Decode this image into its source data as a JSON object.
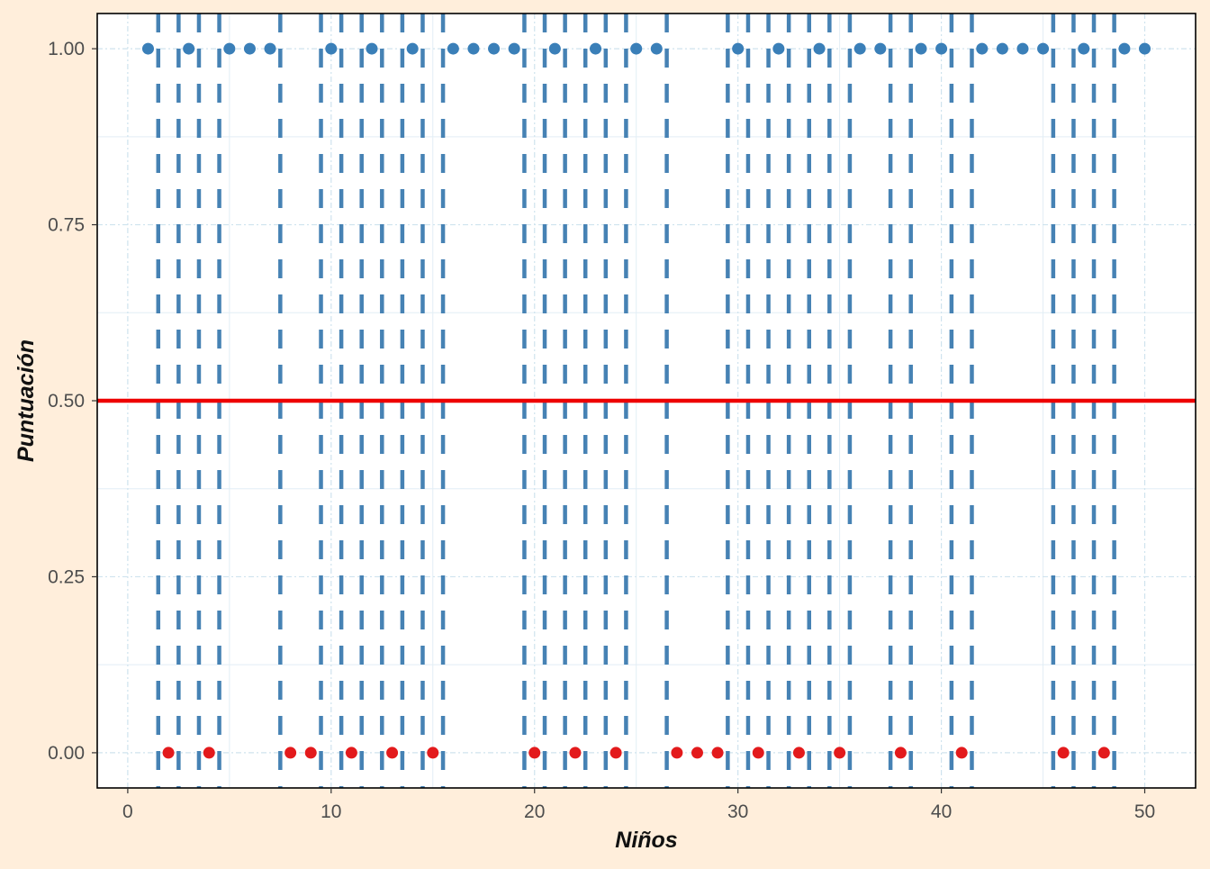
{
  "chart_data": {
    "type": "scatter",
    "title": "",
    "xlabel": "Niños",
    "ylabel": "Puntuación",
    "xlim": [
      -1.5,
      52.5
    ],
    "ylim": [
      -0.05,
      1.05
    ],
    "x_ticks": [
      {
        "value": 0,
        "label": "0"
      },
      {
        "value": 10,
        "label": "10"
      },
      {
        "value": 20,
        "label": "20"
      },
      {
        "value": 30,
        "label": "30"
      },
      {
        "value": 40,
        "label": "40"
      },
      {
        "value": 50,
        "label": "50"
      }
    ],
    "y_ticks": [
      {
        "value": 0.0,
        "label": "0.00"
      },
      {
        "value": 0.25,
        "label": "0.25"
      },
      {
        "value": 0.5,
        "label": "0.50"
      },
      {
        "value": 0.75,
        "label": "0.75"
      },
      {
        "value": 1.0,
        "label": "1.00"
      }
    ],
    "grid": true,
    "threshold": {
      "y": 0.5,
      "color": "#EE0000"
    },
    "colors": {
      "high": "#3A7FB8",
      "low": "#E31A1C",
      "change_line": "#4682B4"
    },
    "points": [
      {
        "x": 1,
        "y": 1
      },
      {
        "x": 2,
        "y": 0
      },
      {
        "x": 3,
        "y": 1
      },
      {
        "x": 4,
        "y": 0
      },
      {
        "x": 5,
        "y": 1
      },
      {
        "x": 6,
        "y": 1
      },
      {
        "x": 7,
        "y": 1
      },
      {
        "x": 8,
        "y": 0
      },
      {
        "x": 9,
        "y": 0
      },
      {
        "x": 10,
        "y": 1
      },
      {
        "x": 11,
        "y": 0
      },
      {
        "x": 12,
        "y": 1
      },
      {
        "x": 13,
        "y": 0
      },
      {
        "x": 14,
        "y": 1
      },
      {
        "x": 15,
        "y": 0
      },
      {
        "x": 16,
        "y": 1
      },
      {
        "x": 17,
        "y": 1
      },
      {
        "x": 18,
        "y": 1
      },
      {
        "x": 19,
        "y": 1
      },
      {
        "x": 20,
        "y": 0
      },
      {
        "x": 21,
        "y": 1
      },
      {
        "x": 22,
        "y": 0
      },
      {
        "x": 23,
        "y": 1
      },
      {
        "x": 24,
        "y": 0
      },
      {
        "x": 25,
        "y": 1
      },
      {
        "x": 26,
        "y": 1
      },
      {
        "x": 27,
        "y": 0
      },
      {
        "x": 28,
        "y": 0
      },
      {
        "x": 29,
        "y": 0
      },
      {
        "x": 30,
        "y": 1
      },
      {
        "x": 31,
        "y": 0
      },
      {
        "x": 32,
        "y": 1
      },
      {
        "x": 33,
        "y": 0
      },
      {
        "x": 34,
        "y": 1
      },
      {
        "x": 35,
        "y": 0
      },
      {
        "x": 36,
        "y": 1
      },
      {
        "x": 37,
        "y": 1
      },
      {
        "x": 38,
        "y": 0
      },
      {
        "x": 39,
        "y": 1
      },
      {
        "x": 40,
        "y": 1
      },
      {
        "x": 41,
        "y": 0
      },
      {
        "x": 42,
        "y": 1
      },
      {
        "x": 43,
        "y": 1
      },
      {
        "x": 44,
        "y": 1
      },
      {
        "x": 45,
        "y": 1
      },
      {
        "x": 46,
        "y": 0
      },
      {
        "x": 47,
        "y": 1
      },
      {
        "x": 48,
        "y": 0
      },
      {
        "x": 49,
        "y": 1
      },
      {
        "x": 50,
        "y": 1
      }
    ],
    "change_lines_x": [
      1.5,
      2.5,
      3.5,
      4.5,
      7.5,
      9.5,
      10.5,
      11.5,
      12.5,
      13.5,
      14.5,
      15.5,
      19.5,
      20.5,
      21.5,
      22.5,
      23.5,
      24.5,
      26.5,
      29.5,
      30.5,
      31.5,
      32.5,
      33.5,
      34.5,
      35.5,
      37.5,
      38.5,
      40.5,
      41.5,
      45.5,
      46.5,
      47.5,
      48.5
    ]
  }
}
